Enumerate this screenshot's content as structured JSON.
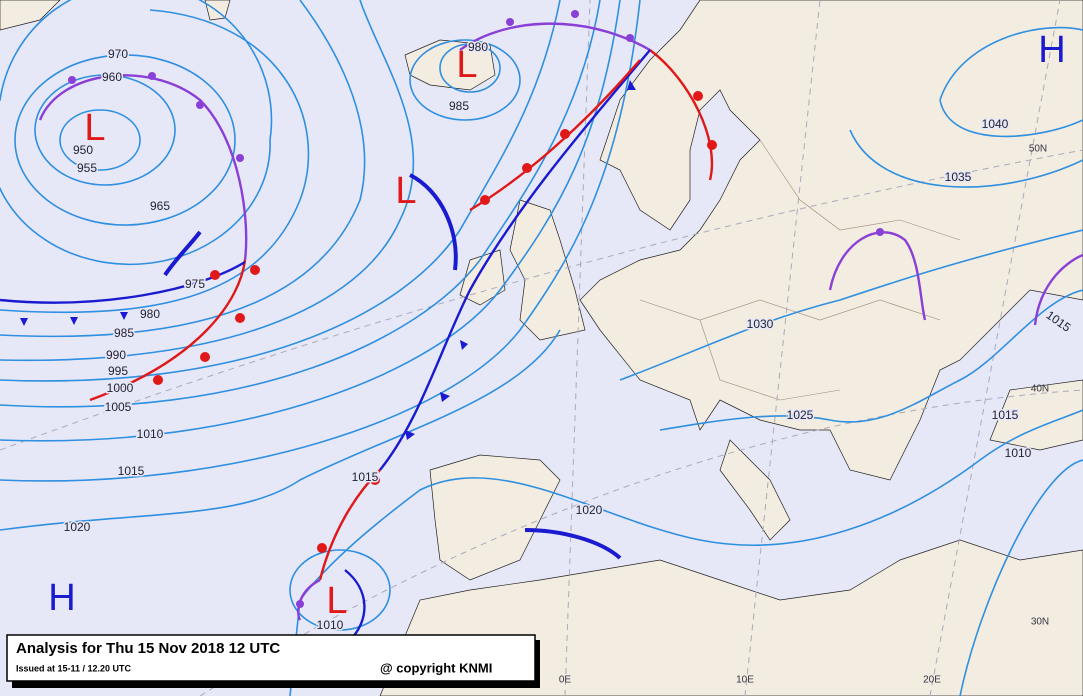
{
  "title": "Analysis for Thu 15 Nov 2018 12 UTC",
  "issued": "Issued at 15-11 / 12.20 UTC",
  "copyright": "@ copyright KNMI",
  "centers": [
    "H",
    "L",
    "L",
    "L",
    "H",
    "L"
  ],
  "isobar_labels": [
    970,
    960,
    950,
    955,
    965,
    975,
    980,
    985,
    990,
    995,
    1000,
    1005,
    1010,
    1015,
    1020,
    980,
    985,
    1040,
    1035,
    1030,
    1025,
    1015,
    1010,
    1015,
    1020,
    1010,
    1015
  ],
  "grid_labels": [
    "50N",
    "40N",
    "30N",
    "0E",
    "10E",
    "20E"
  ]
}
